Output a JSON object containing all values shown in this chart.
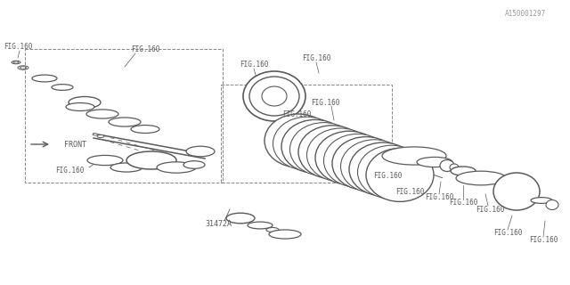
{
  "bg_color": "#ffffff",
  "line_color": "#5a5a5a",
  "text_color": "#5a5a5a",
  "watermark": "A150001297",
  "label_31472A": "31472A",
  "label_fig160": "FIG.160"
}
